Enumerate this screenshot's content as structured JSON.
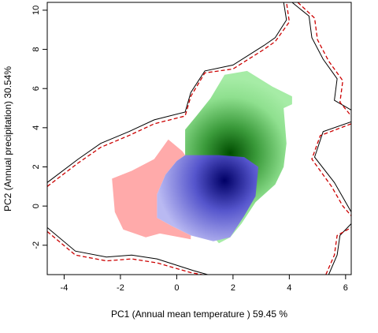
{
  "chart_data": {
    "type": "heatmap",
    "title": "",
    "xlabel": "PC1 (Annual mean temperature ) 59.45 %",
    "ylabel": "PC2 (Annual precipitation) 30.54%",
    "xlim": [
      -4.6,
      6.2
    ],
    "ylim": [
      -3.5,
      10.4
    ],
    "xticks": [
      -4,
      -2,
      0,
      2,
      4,
      6
    ],
    "yticks": [
      -2,
      0,
      2,
      4,
      6,
      8,
      10
    ],
    "grid": false,
    "legend": "none",
    "colors": {
      "green_light": "#a6eca6",
      "green_dark": "#004d00",
      "blue_light": "#b9b9f2",
      "blue_dark": "#000066",
      "pink": "#ffaaaa",
      "boundary_solid": "#000000",
      "boundary_dashed": "#cc0000"
    },
    "regions": [
      {
        "color": "green",
        "density_peak": [
          1.9,
          2.7
        ],
        "outline": [
          [
            1.2,
            5.5
          ],
          [
            1.7,
            6.7
          ],
          [
            2.5,
            6.9
          ],
          [
            3.4,
            6.1
          ],
          [
            4.1,
            5.6
          ],
          [
            4.1,
            5.2
          ],
          [
            3.8,
            5.0
          ],
          [
            3.9,
            3.2
          ],
          [
            3.8,
            2.0
          ],
          [
            3.5,
            1.1
          ],
          [
            2.8,
            0.2
          ],
          [
            2.3,
            -0.9
          ],
          [
            1.9,
            -1.6
          ],
          [
            1.5,
            -1.9
          ],
          [
            1.2,
            -1.4
          ],
          [
            0.9,
            0.5
          ],
          [
            0.6,
            1.6
          ],
          [
            0.3,
            2.6
          ],
          [
            0.3,
            3.9
          ],
          [
            0.7,
            4.6
          ]
        ]
      },
      {
        "color": "blue",
        "density_peak": [
          1.7,
          1.3
        ],
        "outline": [
          [
            0.3,
            2.6
          ],
          [
            1.5,
            2.6
          ],
          [
            2.4,
            2.5
          ],
          [
            2.9,
            2.0
          ],
          [
            2.8,
            0.5
          ],
          [
            2.4,
            -0.5
          ],
          [
            1.9,
            -1.6
          ],
          [
            1.3,
            -1.8
          ],
          [
            0.5,
            -1.5
          ],
          [
            -0.2,
            -1.0
          ],
          [
            -0.7,
            -0.6
          ],
          [
            -0.7,
            0.6
          ],
          [
            -0.4,
            1.6
          ],
          [
            0.0,
            2.3
          ]
        ]
      },
      {
        "color": "pink",
        "outline": [
          [
            -0.3,
            3.4
          ],
          [
            0.2,
            2.8
          ],
          [
            0.3,
            2.6
          ],
          [
            0.0,
            2.3
          ],
          [
            -0.4,
            1.6
          ],
          [
            -0.7,
            0.6
          ],
          [
            -0.7,
            -0.6
          ],
          [
            -0.2,
            -1.0
          ],
          [
            0.5,
            -1.5
          ],
          [
            0.5,
            -1.7
          ],
          [
            -0.6,
            -1.4
          ],
          [
            -1.1,
            -1.6
          ],
          [
            -1.9,
            -1.2
          ],
          [
            -2.2,
            -0.3
          ],
          [
            -2.3,
            1.4
          ],
          [
            -1.6,
            1.8
          ],
          [
            -0.8,
            2.4
          ],
          [
            -0.5,
            3.0
          ]
        ]
      }
    ],
    "boundaries": [
      {
        "style": "solid",
        "points": [
          [
            -4.6,
            1.2
          ],
          [
            -3.5,
            2.4
          ],
          [
            -2.7,
            3.2
          ],
          [
            -1.7,
            3.8
          ],
          [
            -0.8,
            4.4
          ],
          [
            0.3,
            4.8
          ],
          [
            0.5,
            5.8
          ],
          [
            1.0,
            6.9
          ],
          [
            2.0,
            7.2
          ],
          [
            3.1,
            8.2
          ],
          [
            3.5,
            8.6
          ],
          [
            3.9,
            9.5
          ],
          [
            3.8,
            10.4
          ]
        ]
      },
      {
        "style": "dashed",
        "points": [
          [
            -4.6,
            1.0
          ],
          [
            -3.5,
            2.2
          ],
          [
            -2.7,
            3.0
          ],
          [
            -1.7,
            3.6
          ],
          [
            -0.8,
            4.2
          ],
          [
            0.3,
            4.6
          ],
          [
            0.5,
            5.6
          ],
          [
            1.0,
            6.8
          ],
          [
            2.0,
            7.0
          ],
          [
            3.1,
            8.0
          ],
          [
            3.5,
            8.4
          ],
          [
            4.0,
            9.4
          ],
          [
            3.9,
            10.4
          ]
        ]
      },
      {
        "style": "solid",
        "points": [
          [
            4.1,
            10.4
          ],
          [
            4.7,
            9.7
          ],
          [
            4.8,
            8.6
          ],
          [
            5.2,
            7.5
          ],
          [
            5.7,
            6.5
          ],
          [
            5.6,
            5.4
          ],
          [
            6.2,
            4.9
          ]
        ]
      },
      {
        "style": "dashed",
        "points": [
          [
            4.3,
            10.4
          ],
          [
            4.9,
            9.6
          ],
          [
            5.0,
            8.5
          ],
          [
            5.4,
            7.4
          ],
          [
            5.9,
            6.4
          ],
          [
            5.8,
            5.3
          ],
          [
            6.2,
            4.6
          ]
        ]
      },
      {
        "style": "solid",
        "points": [
          [
            6.2,
            4.3
          ],
          [
            5.2,
            3.8
          ],
          [
            4.9,
            2.5
          ],
          [
            5.6,
            1.2
          ],
          [
            6.0,
            0.2
          ],
          [
            6.2,
            -0.3
          ]
        ]
      },
      {
        "style": "dashed",
        "points": [
          [
            6.2,
            4.2
          ],
          [
            5.1,
            3.6
          ],
          [
            4.8,
            2.4
          ],
          [
            5.5,
            1.0
          ],
          [
            5.9,
            0.0
          ],
          [
            6.2,
            -0.5
          ]
        ]
      },
      {
        "style": "solid",
        "points": [
          [
            -4.6,
            -1.1
          ],
          [
            -3.6,
            -2.3
          ],
          [
            -2.5,
            -2.6
          ],
          [
            -1.6,
            -2.5
          ],
          [
            -0.7,
            -2.7
          ],
          [
            0.6,
            -3.3
          ],
          [
            1.1,
            -3.5
          ]
        ]
      },
      {
        "style": "dashed",
        "points": [
          [
            -4.6,
            -1.3
          ],
          [
            -3.6,
            -2.5
          ],
          [
            -2.5,
            -2.8
          ],
          [
            -1.6,
            -2.7
          ],
          [
            -0.7,
            -2.9
          ],
          [
            0.5,
            -3.4
          ],
          [
            0.9,
            -3.5
          ]
        ]
      },
      {
        "style": "solid",
        "points": [
          [
            5.4,
            -3.5
          ],
          [
            5.7,
            -2.5
          ],
          [
            5.8,
            -1.5
          ],
          [
            6.2,
            -0.9
          ]
        ]
      },
      {
        "style": "dashed",
        "points": [
          [
            5.3,
            -3.5
          ],
          [
            5.6,
            -2.5
          ],
          [
            5.7,
            -1.5
          ],
          [
            6.2,
            -1.1
          ]
        ]
      }
    ]
  }
}
